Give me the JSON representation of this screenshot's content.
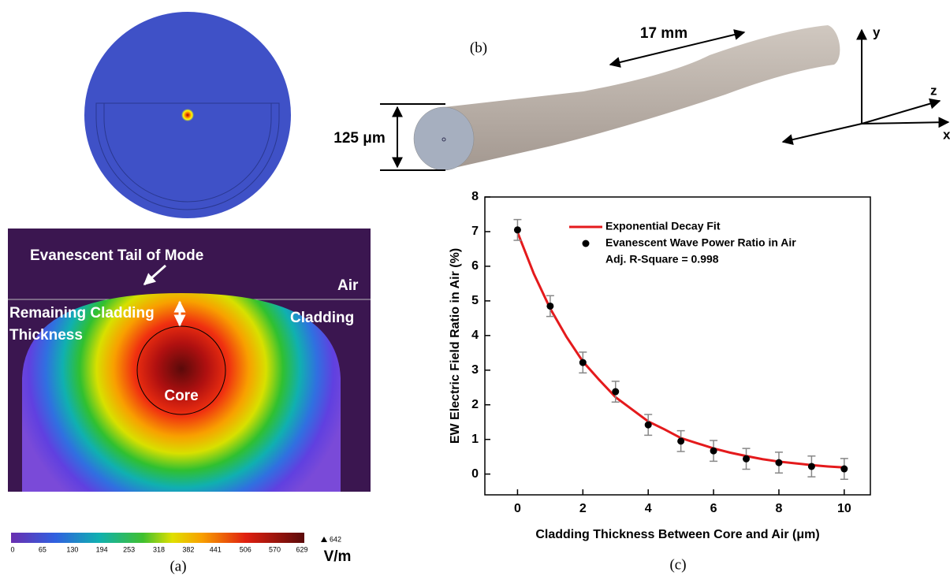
{
  "panel_a": {
    "caption": "(a)",
    "labels": {
      "tail": "Evanescent Tail of Mode",
      "air": "Air",
      "remaining": "Remaining Cladding",
      "thickness": "Thickness",
      "cladding": "Cladding",
      "core": "Core"
    },
    "colorbar": {
      "ticks": [
        0,
        65,
        130,
        194,
        253,
        318,
        382,
        441,
        506,
        570,
        629
      ],
      "max": 642,
      "unit": "V/m"
    }
  },
  "panel_b": {
    "caption": "(b)",
    "length": "17 mm",
    "diameter": "125 μm",
    "axes": {
      "y": "y",
      "z": "z",
      "x": "x"
    }
  },
  "chart_data": {
    "type": "scatter",
    "caption": "(c)",
    "x_label": "Cladding Thickness Between Core and Air (μm)",
    "y_label": "EW Electric Field Ratio in Air (%)",
    "annotation": "Adj. R-Square = 0.998",
    "xlim": [
      -1,
      10.8
    ],
    "ylim": [
      -0.6,
      8
    ],
    "xticks": [
      0,
      2,
      4,
      6,
      8,
      10
    ],
    "yticks": [
      0,
      1,
      2,
      3,
      4,
      5,
      6,
      7,
      8
    ],
    "series": [
      {
        "name": "Exponential Decay Fit",
        "color": "#e41a1c",
        "x": [
          0,
          0.5,
          1,
          1.5,
          2,
          2.5,
          3,
          3.5,
          4,
          4.5,
          5,
          5.5,
          6,
          6.5,
          7,
          7.5,
          8,
          8.5,
          9,
          9.5,
          10
        ],
        "values": [
          6.98,
          5.78,
          4.78,
          3.96,
          3.25,
          2.72,
          2.22,
          1.87,
          1.52,
          1.29,
          1.04,
          0.89,
          0.74,
          0.62,
          0.52,
          0.43,
          0.36,
          0.31,
          0.26,
          0.22,
          0.19
        ]
      },
      {
        "name": "Evanescent Wave Power Ratio in Air",
        "color": "#000000",
        "x": [
          0,
          1,
          2,
          3,
          4,
          5,
          6,
          7,
          8,
          9,
          10
        ],
        "values": [
          7.05,
          4.85,
          3.22,
          2.38,
          1.42,
          0.95,
          0.67,
          0.44,
          0.33,
          0.22,
          0.15
        ],
        "errors": [
          0.3,
          0.3,
          0.3,
          0.3,
          0.3,
          0.3,
          0.3,
          0.3,
          0.3,
          0.3,
          0.3
        ]
      }
    ]
  }
}
